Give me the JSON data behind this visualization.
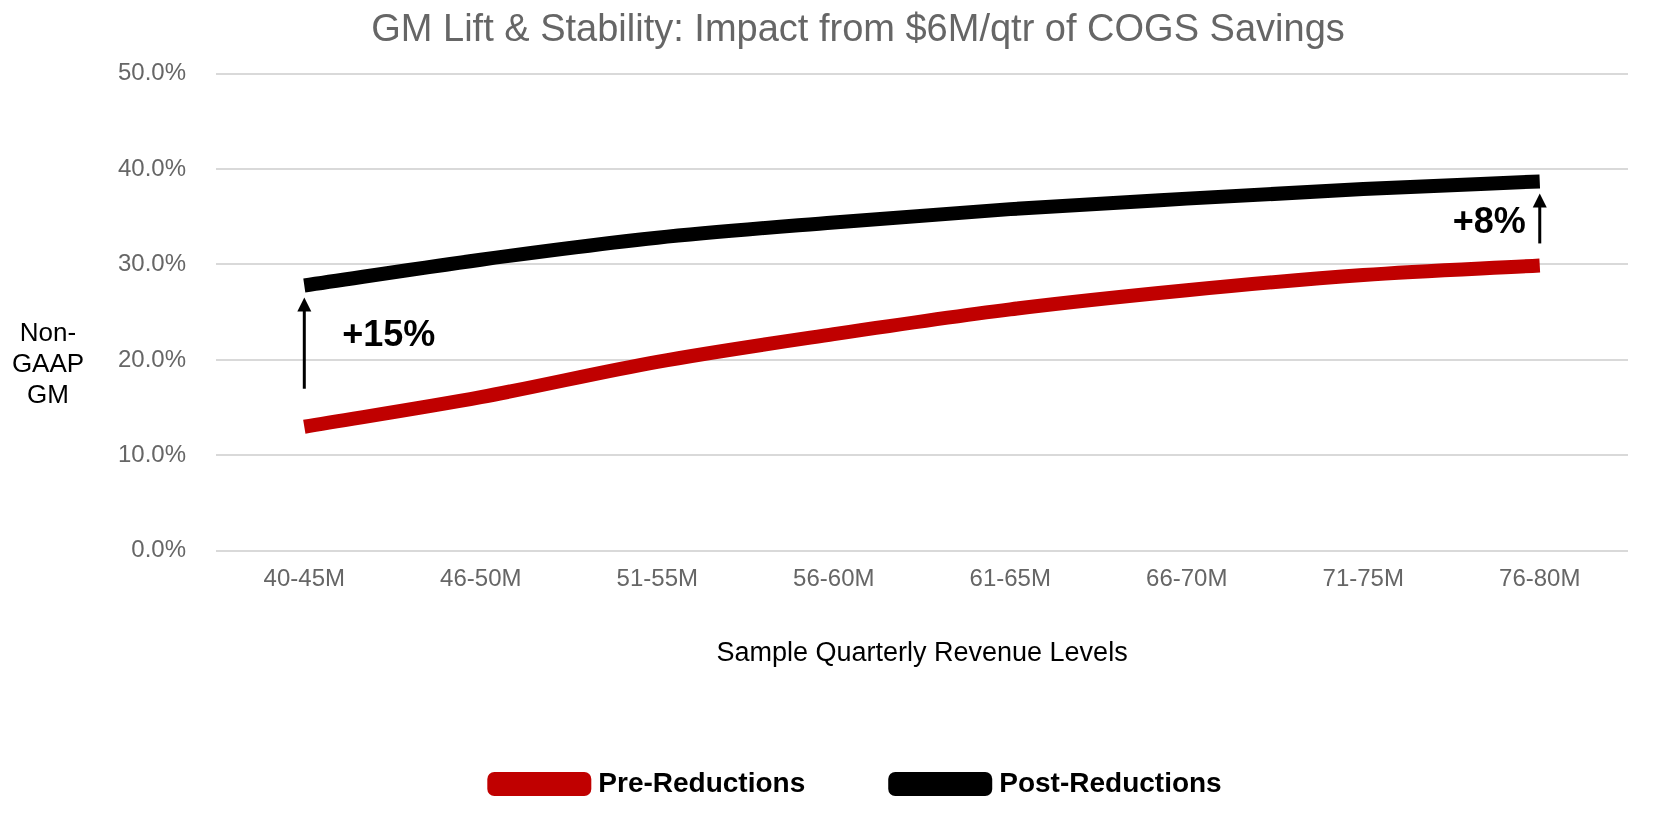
{
  "chart_data": {
    "type": "line",
    "title": "GM Lift & Stability: Impact from $6M/qtr of COGS Savings",
    "xlabel": "Sample Quarterly Revenue Levels",
    "ylabel": "Non-GAAP GM",
    "categories": [
      "40-45M",
      "46-50M",
      "51-55M",
      "56-60M",
      "61-65M",
      "66-70M",
      "71-75M",
      "76-80M"
    ],
    "series": [
      {
        "name": "Pre-Reductions",
        "color": "#c00000",
        "values": [
          13.0,
          16.1,
          19.8,
          22.7,
          25.3,
          27.3,
          28.9,
          29.9
        ]
      },
      {
        "name": "Post-Reductions",
        "color": "#000000",
        "values": [
          27.8,
          30.5,
          32.8,
          34.4,
          35.8,
          36.9,
          37.9,
          38.7
        ]
      }
    ],
    "ylim": [
      0,
      50
    ],
    "yticks": [
      {
        "value": 0,
        "label": "0.0%"
      },
      {
        "value": 10,
        "label": "10.0%"
      },
      {
        "value": 20,
        "label": "20.0%"
      },
      {
        "value": 30,
        "label": "30.0%"
      },
      {
        "value": 40,
        "label": "40.0%"
      },
      {
        "value": 50,
        "label": "50.0%"
      }
    ],
    "grid": "y",
    "legend": "bottom",
    "marker": "none",
    "line_style": "solid",
    "annotations": [
      "+15%",
      "+8%"
    ]
  }
}
